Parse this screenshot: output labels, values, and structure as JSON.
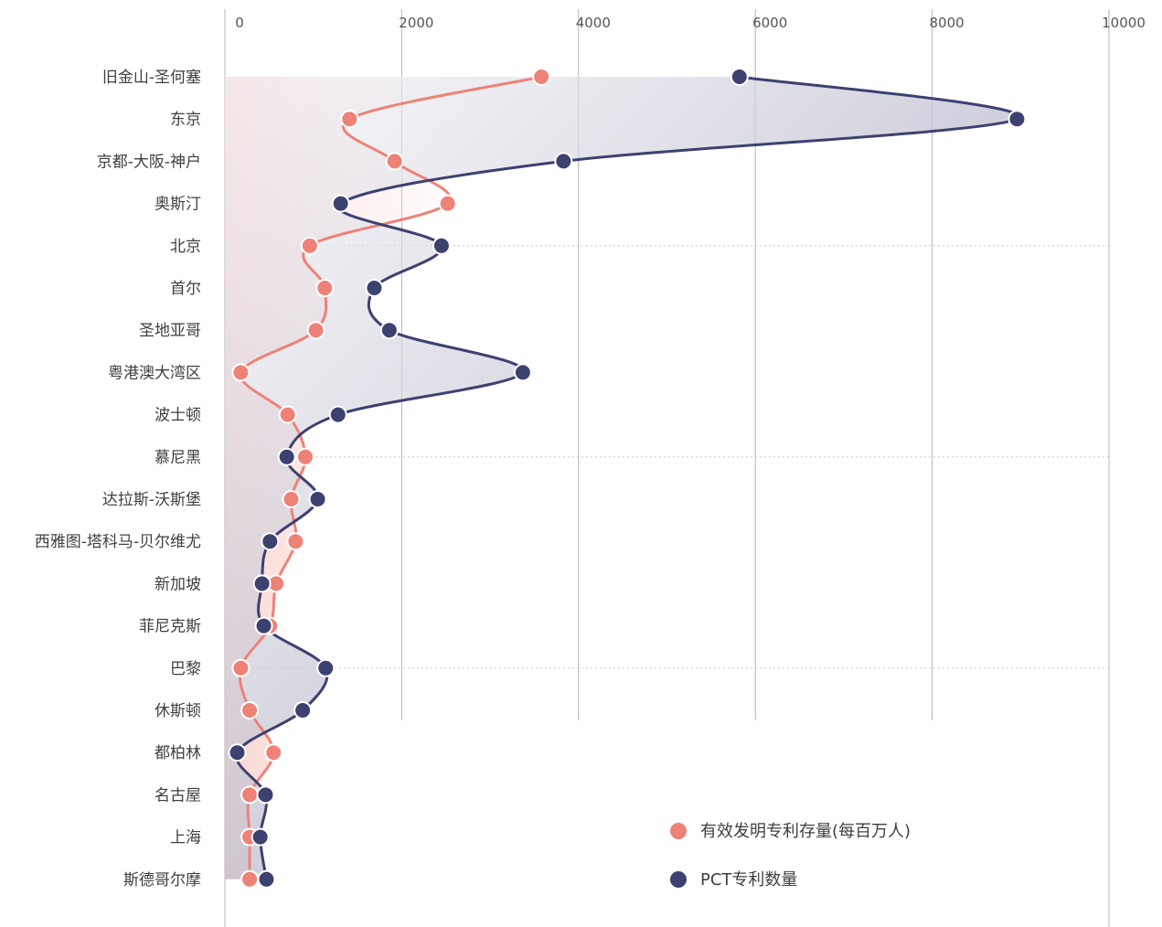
{
  "chart_data": {
    "type": "line",
    "orientation": "horizontal",
    "xlim": [
      0,
      10000
    ],
    "x_ticks": [
      0,
      2000,
      4000,
      6000,
      8000,
      10000
    ],
    "x_tick_labels": [
      "0",
      "2000",
      "4000",
      "6000",
      "8000",
      "10000"
    ],
    "categories": [
      "旧金山-圣何塞",
      "东京",
      "京都-大阪-神户",
      "奥斯汀",
      "北京",
      "首尔",
      "圣地亚哥",
      "粤港澳大湾区",
      "波士顿",
      "慕尼黑",
      "达拉斯-沃斯堡",
      "西雅图-塔科马-贝尔维尤",
      "新加坡",
      "菲尼克斯",
      "巴黎",
      "休斯顿",
      "都柏林",
      "名古屋",
      "上海",
      "斯德哥尔摩"
    ],
    "series": [
      {
        "name": "有效发明专利存量(每百万人)",
        "color": "#ee8277",
        "values": [
          3580,
          1410,
          1920,
          2520,
          960,
          1130,
          1030,
          180,
          710,
          910,
          750,
          800,
          580,
          510,
          180,
          280,
          550,
          280,
          280,
          280
        ]
      },
      {
        "name": "PCT专利数量",
        "color": "#3d4170",
        "values": [
          5820,
          8960,
          3830,
          1310,
          2450,
          1690,
          1860,
          3370,
          1280,
          700,
          1050,
          510,
          420,
          440,
          1140,
          880,
          140,
          460,
          400,
          470
        ]
      }
    ],
    "legend_position": "bottom-right",
    "grid": "vertical gridlines at major ticks; dotted horizontal rules every 5 categories"
  }
}
